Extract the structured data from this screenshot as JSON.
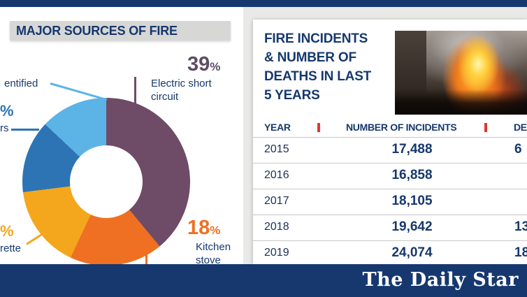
{
  "page": {
    "colors": {
      "navy": "#16386e",
      "red_marker": "#dc3a30",
      "title_bar_gray": "#d7d7d5",
      "backdrop_gray": "#e9eae7"
    }
  },
  "left_panel": {
    "title": "MAJOR SOURCES OF FIRE",
    "labels": {
      "unidentified_fragment": "entified",
      "others_pct": "%",
      "others_fragment": "rs",
      "cigarette_pct": "%",
      "cigarette_fragment": "rette",
      "electric_pct": "39",
      "pct_sign": "%",
      "electric_line1": "Electric short",
      "electric_line2": "circuit",
      "kitchen_pct": "18",
      "kitchen_line1": "Kitchen",
      "kitchen_line2": "stove"
    }
  },
  "chart_data": [
    {
      "type": "pie",
      "donut": true,
      "title": "MAJOR SOURCES OF FIRE",
      "segments": [
        {
          "label": "Electric short circuit",
          "value": 39,
          "color": "#6e4b67",
          "pct_label_visible": "39%"
        },
        {
          "label": "Kitchen stove",
          "value": 18,
          "color": "#ef7022",
          "pct_label_visible": "18%"
        },
        {
          "label": "…rette (label cropped at image edge)",
          "value": 16,
          "color": "#f4a71c",
          "pct_label_visible": "%",
          "estimated": true
        },
        {
          "label": "…rs (label cropped at image edge)",
          "value": 14,
          "color": "#2d74b5",
          "pct_label_visible": "%",
          "estimated": true
        },
        {
          "label": "…entified (label cropped at image edge)",
          "value": 13,
          "color": "#5cb4e6",
          "pct_label_visible": "",
          "estimated": true
        }
      ],
      "layout": {
        "left_labels_cropped_by_image_edge": true,
        "legend": "callout-lines"
      }
    },
    {
      "type": "table",
      "title": "FIRE INCIDENTS & NUMBER OF DEATHS IN LAST 5 YEARS",
      "columns": [
        "YEAR",
        "NUMBER OF INCIDENTS",
        "DEA"
      ],
      "rows": [
        [
          "2015",
          "17,488",
          "6"
        ],
        [
          "2016",
          "16,858",
          ""
        ],
        [
          "2017",
          "18,105",
          ""
        ],
        [
          "2018",
          "19,642",
          "13"
        ],
        [
          "2019",
          "24,074",
          "18"
        ]
      ],
      "layout": {
        "third_column_cropped_at_right_edge": true
      }
    }
  ],
  "right_panel": {
    "title_lines": [
      "FIRE INCIDENTS",
      "& NUMBER OF",
      "DEATHS IN LAST",
      "5 YEARS"
    ]
  },
  "footer": {
    "logo": "The Daily Star"
  }
}
